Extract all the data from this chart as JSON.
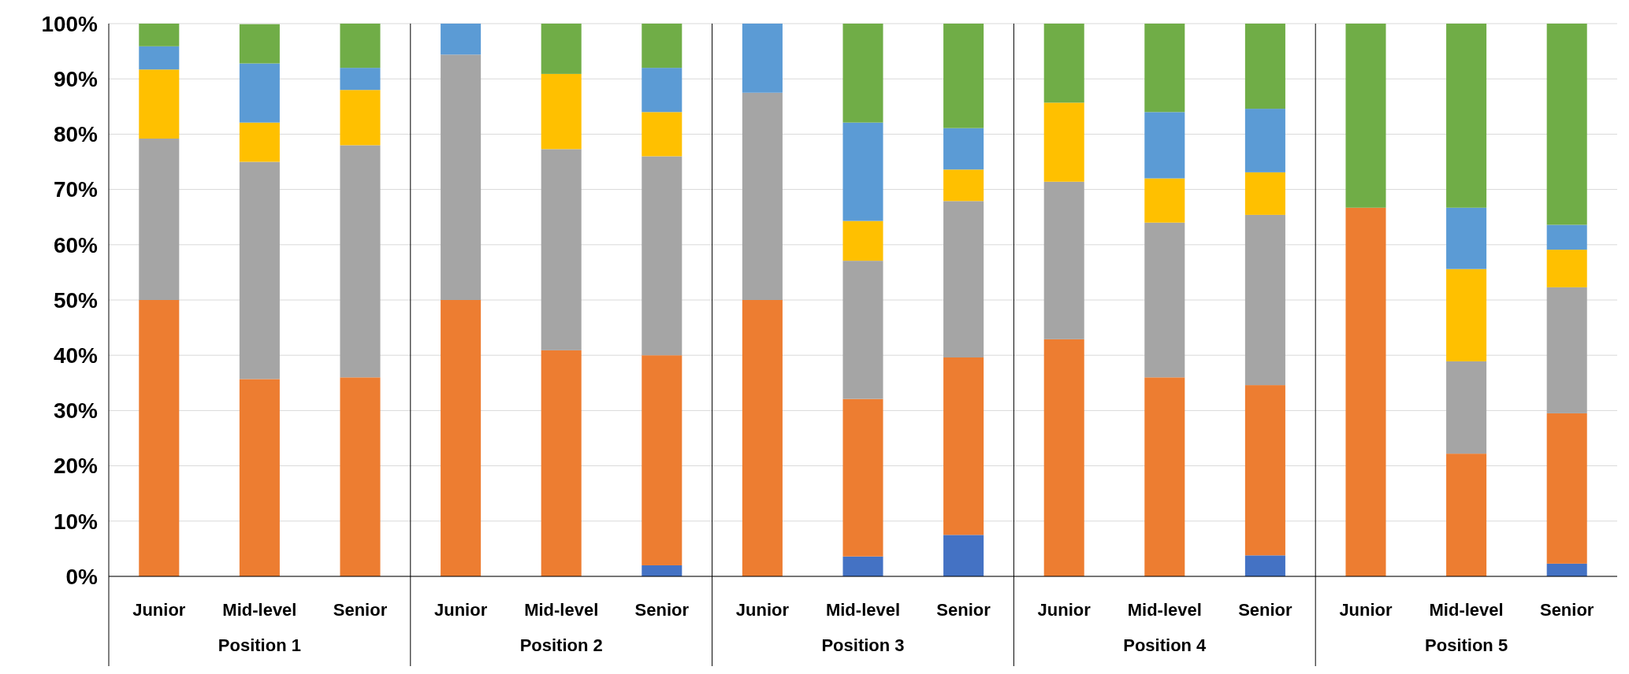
{
  "chart_data": {
    "type": "bar",
    "stacked": true,
    "categories": [
      "Junior",
      "Mid-level",
      "Senior",
      "Junior",
      "Mid-level",
      "Senior",
      "Junior",
      "Mid-level",
      "Senior",
      "Junior",
      "Mid-level",
      "Senior",
      "Junior",
      "Mid-level",
      "Senior"
    ],
    "annotations": [
      "Position 1",
      "Position 2",
      "Position 3",
      "Position 4",
      "Position 5"
    ],
    "series": [
      {
        "color": "#4472c4",
        "values": [
          0,
          0,
          0,
          0,
          0,
          2,
          0,
          3.6,
          7.5,
          0,
          0,
          3.8,
          0,
          0,
          2.3
        ]
      },
      {
        "color": "#ed7d31",
        "values": [
          50,
          35.7,
          36,
          50,
          40.9,
          38,
          50,
          28.5,
          32.1,
          42.9,
          36,
          30.8,
          66.7,
          22.2,
          27.2
        ]
      },
      {
        "color": "#a5a5a5",
        "values": [
          29.2,
          39.3,
          42,
          44.4,
          36.4,
          36,
          37.5,
          25,
          28.3,
          28.5,
          28,
          30.8,
          0,
          16.7,
          22.8
        ]
      },
      {
        "color": "#ffc000",
        "values": [
          12.5,
          7.1,
          10,
          0,
          13.6,
          8,
          0,
          7.2,
          5.7,
          14.3,
          8,
          7.7,
          0,
          16.7,
          6.8
        ]
      },
      {
        "color": "#5b9bd5",
        "values": [
          4.2,
          10.7,
          4,
          5.6,
          0,
          8,
          12.5,
          17.8,
          7.5,
          0,
          12,
          11.5,
          0,
          11.1,
          4.5
        ]
      },
      {
        "color": "#70ad47",
        "values": [
          4.1,
          7.1,
          8,
          0,
          9.1,
          8,
          0,
          17.9,
          18.9,
          14.3,
          16,
          15.4,
          33.3,
          33.3,
          36.4
        ]
      }
    ],
    "ylim": [
      0,
      100
    ],
    "yticks": [
      {
        "value": 0,
        "label": "0%"
      },
      {
        "value": 10,
        "label": "10%"
      },
      {
        "value": 20,
        "label": "20%"
      },
      {
        "value": 30,
        "label": "30%"
      },
      {
        "value": 40,
        "label": "40%"
      },
      {
        "value": 50,
        "label": "50%"
      },
      {
        "value": 60,
        "label": "60%"
      },
      {
        "value": 70,
        "label": "70%"
      },
      {
        "value": 80,
        "label": "80%"
      },
      {
        "value": 90,
        "label": "90%"
      },
      {
        "value": 100,
        "label": "100%"
      }
    ],
    "grid": "y"
  }
}
